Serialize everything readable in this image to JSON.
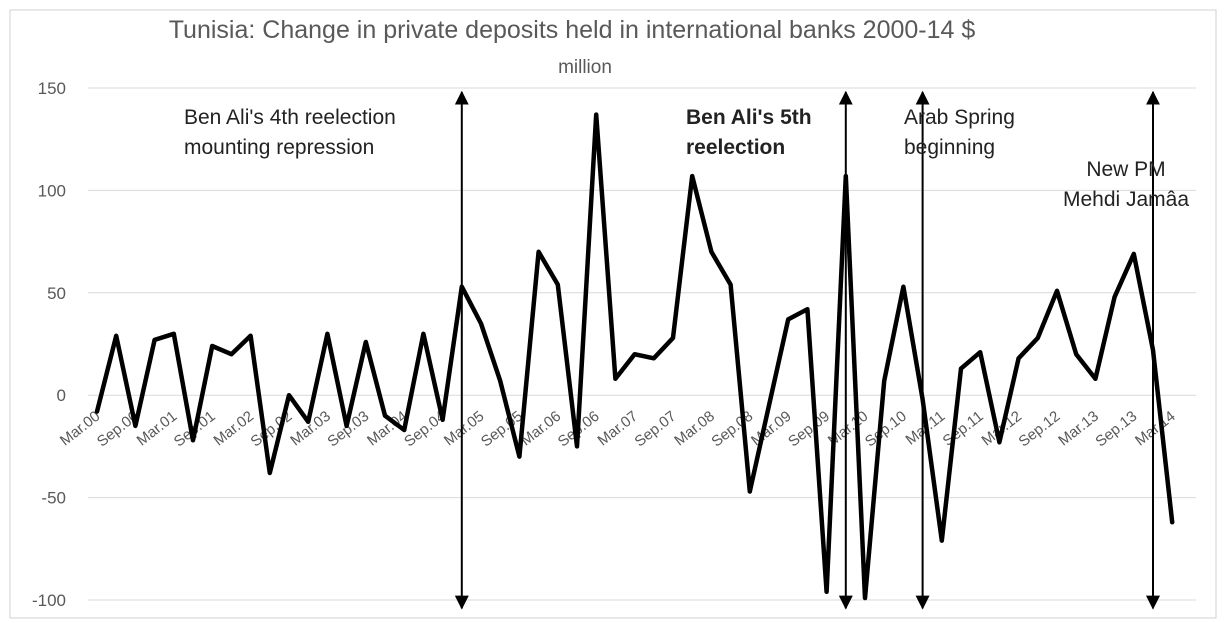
{
  "chart_data": {
    "type": "line",
    "title": "Tunisia: Change in private deposits held in international banks 2000-14 $",
    "subtitle": "million",
    "ylim": [
      -100,
      150
    ],
    "yticks": [
      150,
      100,
      50,
      0,
      -50,
      -100
    ],
    "grid": true,
    "legend": "none",
    "category_labels": [
      "Mar.00",
      "Sep.00",
      "Mar.01",
      "Sep.01",
      "Mar.02",
      "Sep.02",
      "Mar.03",
      "Sep.03",
      "Mar.04",
      "Sep.04",
      "Mar.05",
      "Sep.05",
      "Mar.06",
      "Sep.06",
      "Mar.07",
      "Sep.07",
      "Mar.08",
      "Sep.08",
      "Mar.09",
      "Sep.09",
      "Mar.10",
      "Sep.10",
      "Mar.11",
      "Sep.11",
      "Mar.12",
      "Sep.12",
      "Mar.13",
      "Sep.13",
      "Mar.14"
    ],
    "x": [
      "Mar.00",
      "Jun.00",
      "Sep.00",
      "Dec.00",
      "Mar.01",
      "Jun.01",
      "Sep.01",
      "Dec.01",
      "Mar.02",
      "Jun.02",
      "Sep.02",
      "Dec.02",
      "Mar.03",
      "Jun.03",
      "Sep.03",
      "Dec.03",
      "Mar.04",
      "Jun.04",
      "Sep.04",
      "Dec.04",
      "Mar.05",
      "Jun.05",
      "Sep.05",
      "Dec.05",
      "Mar.06",
      "Jun.06",
      "Sep.06",
      "Dec.06",
      "Mar.07",
      "Jun.07",
      "Sep.07",
      "Dec.07",
      "Mar.08",
      "Jun.08",
      "Sep.08",
      "Dec.08",
      "Mar.09",
      "Jun.09",
      "Sep.09",
      "Dec.09",
      "Mar.10",
      "Jun.10",
      "Sep.10",
      "Dec.10",
      "Mar.11",
      "Jun.11",
      "Sep.11",
      "Dec.11",
      "Mar.12",
      "Jun.12",
      "Sep.12",
      "Dec.12",
      "Mar.13",
      "Jun.13",
      "Sep.13",
      "Dec.13",
      "Mar.14",
      "Jun.14"
    ],
    "values": [
      -8,
      29,
      -15,
      27,
      30,
      -22,
      24,
      20,
      29,
      -38,
      0,
      -13,
      30,
      -15,
      26,
      -10,
      -17,
      30,
      -12,
      53,
      35,
      7,
      -30,
      70,
      54,
      -25,
      137,
      8,
      20,
      18,
      28,
      107,
      70,
      54,
      -47,
      -5,
      37,
      42,
      -96,
      107,
      -99,
      7,
      53,
      -2,
      -71,
      13,
      21,
      -23,
      18,
      28,
      51,
      20,
      8,
      48,
      69,
      22,
      -62,
      null
    ],
    "annotations": [
      {
        "lines": [
          "Ben Ali's 4th reelection",
          "mounting repression"
        ],
        "x": "Dec.04",
        "bold": false
      },
      {
        "lines": [
          "Ben Ali's 5th",
          "reelection"
        ],
        "x": "Dec.09",
        "bold": true
      },
      {
        "lines": [
          "Arab Spring",
          "beginning"
        ],
        "x": "Dec.10",
        "bold": false
      },
      {
        "lines": [
          "New PM",
          "Mehdi Jamâa"
        ],
        "x": "Dec.13",
        "bold": false
      }
    ]
  }
}
